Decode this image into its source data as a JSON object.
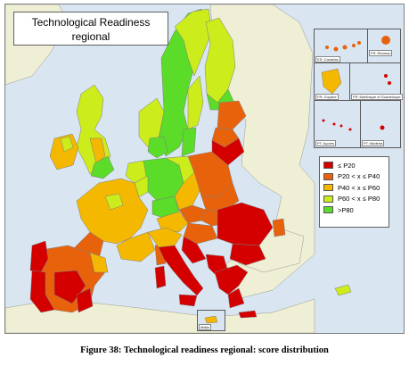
{
  "title": {
    "line1": "Technological Readiness",
    "line2": "regional"
  },
  "legend": {
    "items": [
      {
        "label": "≤ P20",
        "color": "#d40000"
      },
      {
        "label": "P20 < x ≤ P40",
        "color": "#e8620c"
      },
      {
        "label": "P40 < x ≤ P60",
        "color": "#f5b800"
      },
      {
        "label": "P60 < x ≤ P80",
        "color": "#ccec1c"
      },
      {
        "label": ">P80",
        "color": "#5adc28"
      }
    ]
  },
  "insets": {
    "canarias": "ES: Canarias",
    "reunion": "FR: Réunion",
    "guyane": "FR: Guyane",
    "martinique": "FR: Martinique et Guadeloupe",
    "acores": "PT: Açores",
    "madeira": "PT: Madeira",
    "malta": "Malta"
  },
  "caption": "Figure 38: Technological readiness regional: score distribution",
  "colors": {
    "sea": "#d9e6f2",
    "non_eu_land": "#efefd6",
    "border": "#7d7d7d"
  }
}
